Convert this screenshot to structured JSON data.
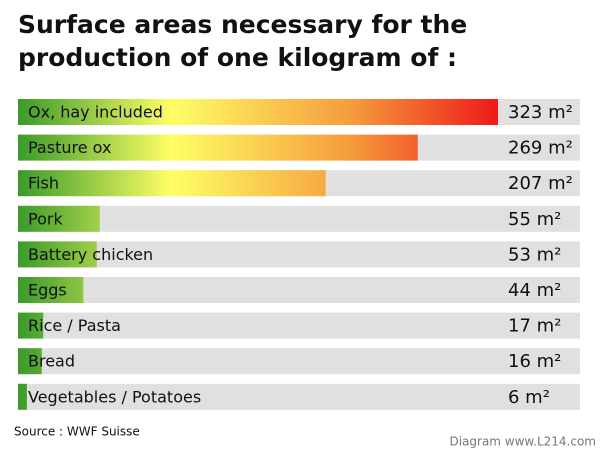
{
  "chart_data": {
    "type": "bar",
    "orientation": "horizontal",
    "title": "Surface areas necessary for the production of one kilogram of :",
    "categories": [
      "Ox, hay included",
      "Pasture ox",
      "Fish",
      "Pork",
      "Battery chicken",
      "Eggs",
      "Rice / Pasta",
      "Bread",
      "Vegetables / Potatoes"
    ],
    "values": [
      323,
      269,
      207,
      55,
      53,
      44,
      17,
      16,
      6
    ],
    "value_labels": [
      "323 m²",
      "269 m²",
      "207 m²",
      "55 m²",
      "53 m²",
      "44 m²",
      "17 m²",
      "16 m²",
      "6 m²"
    ],
    "source": "Source : WWF Suisse",
    "credit": "Diagram www.L214.com"
  }
}
